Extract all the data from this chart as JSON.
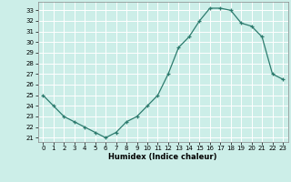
{
  "x": [
    0,
    1,
    2,
    3,
    4,
    5,
    6,
    7,
    8,
    9,
    10,
    11,
    12,
    13,
    14,
    15,
    16,
    17,
    18,
    19,
    20,
    21,
    22,
    23
  ],
  "y": [
    25,
    24,
    23,
    22.5,
    22,
    21.5,
    21,
    21.5,
    22.5,
    23,
    24,
    25,
    27,
    29.5,
    30.5,
    32,
    33.2,
    33.2,
    33,
    31.8,
    31.5,
    30.5,
    27,
    26.5
  ],
  "xlabel": "Humidex (Indice chaleur)",
  "xlim": [
    -0.5,
    23.5
  ],
  "ylim": [
    20.6,
    33.8
  ],
  "yticks": [
    21,
    22,
    23,
    24,
    25,
    26,
    27,
    28,
    29,
    30,
    31,
    32,
    33
  ],
  "xticks": [
    0,
    1,
    2,
    3,
    4,
    5,
    6,
    7,
    8,
    9,
    10,
    11,
    12,
    13,
    14,
    15,
    16,
    17,
    18,
    19,
    20,
    21,
    22,
    23
  ],
  "line_color": "#2d7b6e",
  "marker": "+",
  "bg_color": "#cceee8",
  "grid_color": "#ffffff",
  "spine_color": "#888888"
}
